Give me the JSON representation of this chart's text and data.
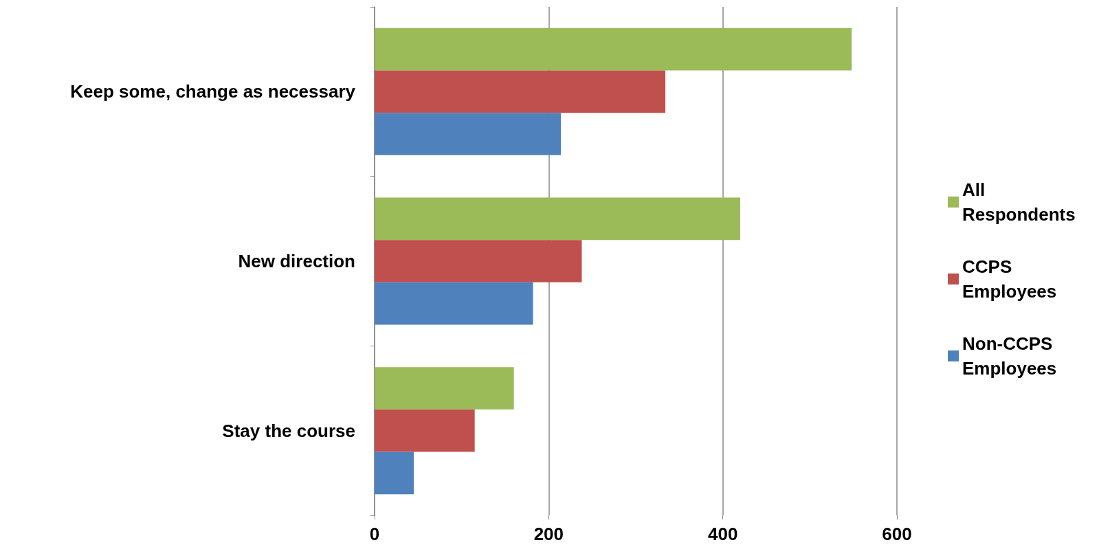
{
  "chart_data": {
    "type": "bar",
    "orientation": "horizontal",
    "categories": [
      "Keep some, change as necessary",
      "New direction",
      "Stay the course"
    ],
    "series": [
      {
        "name": "All Respondents",
        "color": "#9bbb59",
        "values": [
          548,
          420,
          160
        ]
      },
      {
        "name": "CCPS Employees",
        "color": "#c0504d",
        "values": [
          334,
          238,
          115
        ]
      },
      {
        "name": "Non-CCPS Employees",
        "color": "#4f81bd",
        "values": [
          214,
          182,
          45
        ]
      }
    ],
    "xlim": [
      0,
      600
    ],
    "xticks": [
      0,
      200,
      400,
      600
    ],
    "grid": "x",
    "legend": "right"
  }
}
